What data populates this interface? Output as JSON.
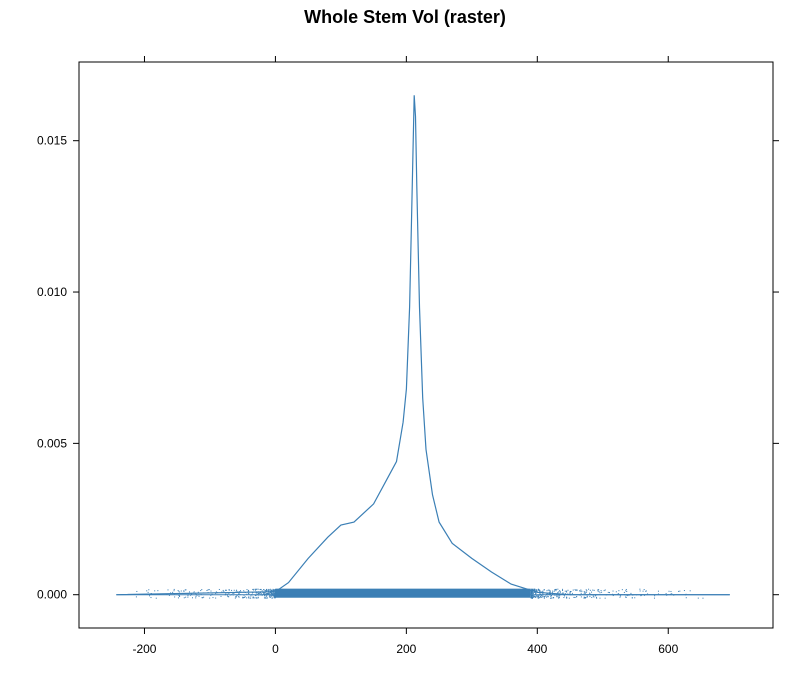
{
  "chart_data": {
    "type": "line",
    "title": "Whole Stem Vol (raster)",
    "xlabel": "",
    "ylabel": "",
    "xlim": [
      -300,
      760
    ],
    "ylim": [
      -0.0011,
      0.0176
    ],
    "x_ticks": [
      -200,
      0,
      200,
      400,
      600
    ],
    "x_tick_labels": [
      "-200",
      "0",
      "200",
      "400",
      "600"
    ],
    "y_ticks": [
      0.0,
      0.005,
      0.01,
      0.015
    ],
    "y_tick_labels": [
      "0.000",
      "0.005",
      "0.010",
      "0.015"
    ],
    "grid": false,
    "line_color": "#3b7fb5",
    "series": [
      {
        "kind": "density",
        "x": [
          -243,
          0,
          20,
          50,
          80,
          100,
          120,
          150,
          170,
          185,
          195,
          200,
          205,
          208,
          210,
          212,
          214,
          216,
          220,
          225,
          230,
          240,
          250,
          270,
          300,
          330,
          360,
          400,
          450,
          500,
          600,
          694
        ],
        "y": [
          0.0,
          0.0001,
          0.0004,
          0.0012,
          0.0019,
          0.0023,
          0.0024,
          0.003,
          0.0038,
          0.0044,
          0.0057,
          0.0068,
          0.0095,
          0.0125,
          0.0145,
          0.0165,
          0.0158,
          0.0135,
          0.0095,
          0.0065,
          0.0048,
          0.0033,
          0.0024,
          0.0017,
          0.0012,
          0.00075,
          0.00035,
          8e-05,
          0.0,
          0.0,
          0.0,
          0.0
        ]
      },
      {
        "kind": "rug",
        "band_x_range": [
          0,
          390
        ],
        "sparse_x_range": [
          -243,
          694
        ],
        "y_range": [
          -0.0001,
          0.0002
        ]
      }
    ]
  }
}
